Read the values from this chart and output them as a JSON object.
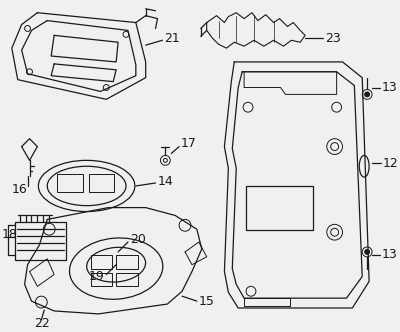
{
  "bg_color": "#f0f0f0",
  "line_color": "#1a1a1a",
  "label_fontsize": 9,
  "figsize": [
    4.0,
    3.32
  ],
  "dpi": 100
}
